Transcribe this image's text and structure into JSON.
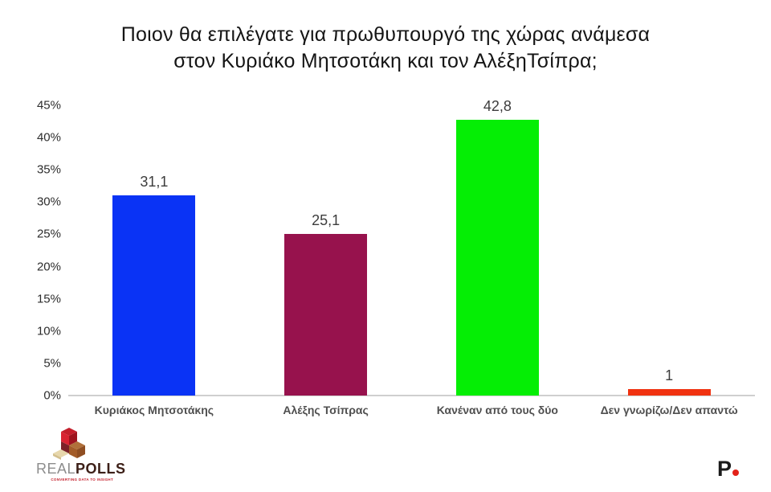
{
  "title": {
    "line1": "Ποιον θα επιλέγατε για πρωθυπουργό της χώρας ανάμεσα",
    "line2": "στον Κυριάκο Μητσοτάκη και τον ΑλέξηΤσίπρα;"
  },
  "chart_data": {
    "type": "bar",
    "title": "Ποιον θα επιλέγατε για πρωθυπουργό της χώρας ανάμεσα στον Κυριάκο Μητσοτάκη και τον ΑλέξηΤσίπρα;",
    "categories": [
      "Κυριάκος Μητσοτάκης",
      "Αλέξης Τσίπρας",
      "Κανέναν από τους δύο",
      "Δεν γνωρίζω/Δεν απαντώ"
    ],
    "values": [
      31.1,
      25.1,
      42.8,
      1
    ],
    "value_labels": [
      "31,1",
      "25,1",
      "42,8",
      "1"
    ],
    "bar_colors": [
      "#0a33f5",
      "#97124d",
      "#05ee05",
      "#f03210"
    ],
    "xlabel": "",
    "ylabel": "",
    "ylim": [
      0,
      45
    ],
    "ytick_labels": [
      "0%",
      "5%",
      "10%",
      "15%",
      "20%",
      "25%",
      "30%",
      "35%",
      "40%",
      "45%"
    ],
    "grid": false,
    "legend": false
  },
  "footer": {
    "realpolls": {
      "brand_real": "REAL",
      "brand_polls": "POLLS",
      "tagline": "CONVERTING DATA TO INSIGHT"
    },
    "protagon": {
      "letter": "P"
    }
  }
}
